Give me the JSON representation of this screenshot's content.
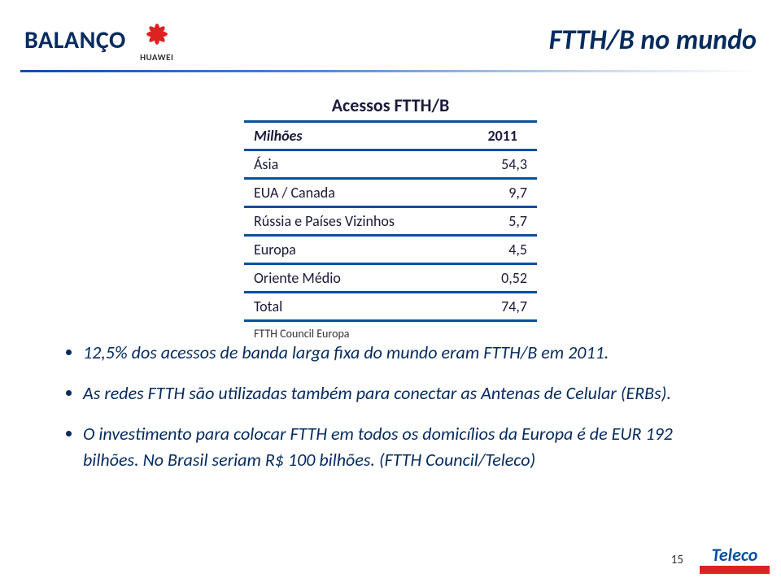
{
  "header": {
    "balanco": "BALANÇO",
    "huawei": "HUAWEI",
    "title": "FTTH/B no mundo"
  },
  "table": {
    "title": "Acessos FTTH/B",
    "caption": "FTTH Council Europa",
    "columns": {
      "label": "Milhões",
      "year": "2011"
    },
    "rows": [
      {
        "label": "Ásia",
        "value": "54,3"
      },
      {
        "label": "EUA / Canada",
        "value": "9,7"
      },
      {
        "label": "Rússia e Países Vizinhos",
        "value": "5,7"
      },
      {
        "label": "Europa",
        "value": "4,5"
      },
      {
        "label": "Oriente Médio",
        "value": "0,52"
      },
      {
        "label": "Total",
        "value": "74,7"
      }
    ],
    "header_bg": "#ffffff",
    "border_color": "#0a4fa0",
    "text_color": "#1a1a3a",
    "font_size": 18
  },
  "bullets": [
    "12,5% dos acessos de banda larga fixa do mundo eram FTTH/B em 2011.",
    "As redes FTTH são utilizadas também para conectar as Antenas de Celular (ERBs).",
    "O investimento para colocar FTTH em todos os domicílios da Europa é de EUR 192 bilhões. No Brasil seriam R$ 100 bilhões. (FTTH Council/Teleco)"
  ],
  "footer": {
    "page": "15",
    "teleco": "Teleco",
    "teleco_sub": ""
  },
  "colors": {
    "title": "#052b5f",
    "divider_start": "#0a4fa0",
    "bullet_text": "#052b5f"
  }
}
